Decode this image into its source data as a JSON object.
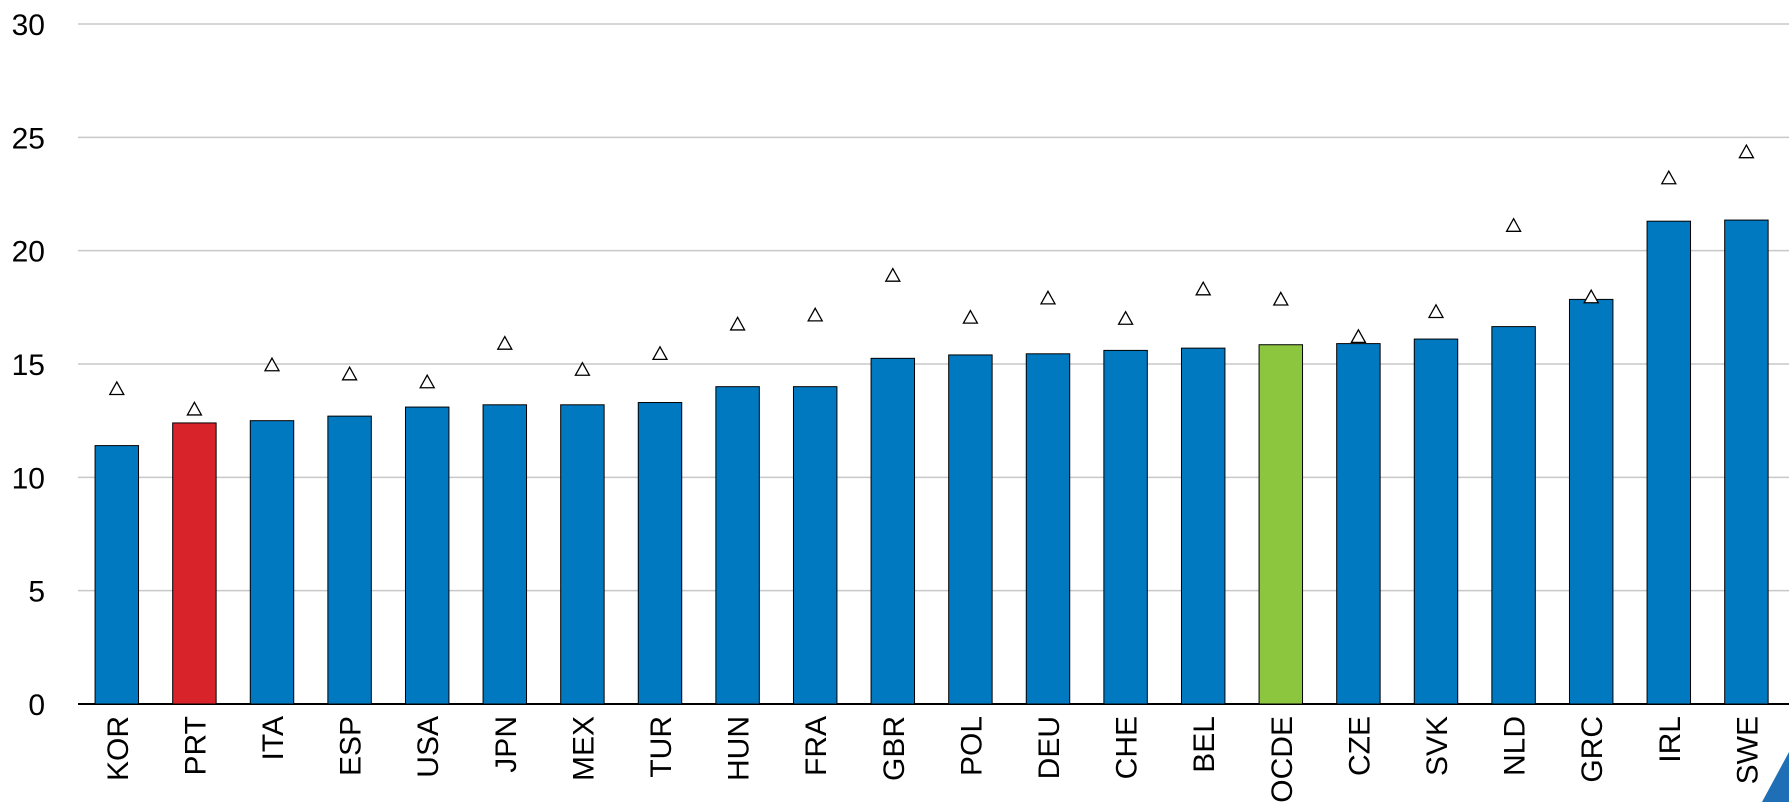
{
  "chart_data": {
    "type": "bar",
    "categories": [
      "KOR",
      "PRT",
      "ITA",
      "ESP",
      "USA",
      "JPN",
      "MEX",
      "TUR",
      "HUN",
      "FRA",
      "GBR",
      "POL",
      "DEU",
      "CHE",
      "BEL",
      "OCDE",
      "CZE",
      "SVK",
      "NLD",
      "GRC",
      "IRL",
      "SWE"
    ],
    "series": [
      {
        "type": "bar",
        "colors": [
          "#0079c1",
          "#d9232a",
          "#0079c1",
          "#0079c1",
          "#0079c1",
          "#0079c1",
          "#0079c1",
          "#0079c1",
          "#0079c1",
          "#0079c1",
          "#0079c1",
          "#0079c1",
          "#0079c1",
          "#0079c1",
          "#0079c1",
          "#8cc63f",
          "#0079c1",
          "#0079c1",
          "#0079c1",
          "#0079c1",
          "#0079c1",
          "#0079c1"
        ],
        "values": [
          11.4,
          12.4,
          12.5,
          12.7,
          13.1,
          13.2,
          13.2,
          13.3,
          14.0,
          14.0,
          15.25,
          15.4,
          15.45,
          15.6,
          15.7,
          15.85,
          15.9,
          16.1,
          16.65,
          17.85,
          21.3,
          21.35
        ]
      },
      {
        "type": "triangle",
        "color": "#ffffff",
        "values": [
          13.9,
          13.0,
          14.95,
          14.55,
          14.2,
          15.9,
          14.75,
          15.45,
          16.75,
          17.15,
          18.9,
          17.05,
          17.9,
          17.0,
          18.3,
          17.85,
          16.2,
          17.3,
          21.1,
          17.95,
          23.2,
          24.35
        ]
      }
    ],
    "ylim": [
      0,
      30
    ],
    "yticks": [
      0,
      5,
      10,
      15,
      20,
      25,
      30
    ],
    "grid": true
  }
}
